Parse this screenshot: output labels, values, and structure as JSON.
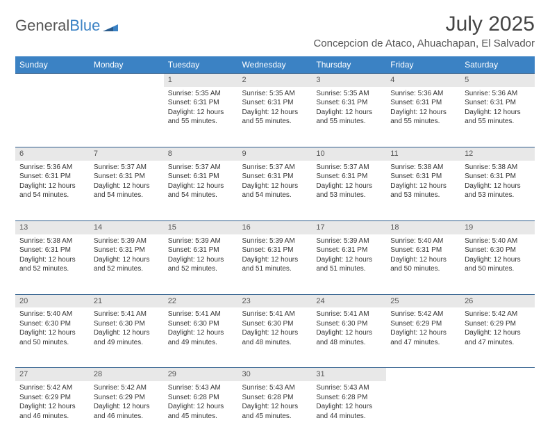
{
  "brand": {
    "part1": "General",
    "part2": "Blue"
  },
  "title": "July 2025",
  "location": "Concepcion de Ataco, Ahuachapan, El Salvador",
  "colors": {
    "header_bg": "#3b82c4",
    "header_text": "#ffffff",
    "daynum_bg": "#e8e8e8",
    "rule": "#2a5a8a",
    "text": "#333333",
    "brand_gray": "#555555",
    "brand_blue": "#3b82c4",
    "page_bg": "#ffffff"
  },
  "font": {
    "family": "Arial",
    "day_header_size": 12,
    "body_size": 10,
    "title_size": 30,
    "location_size": 15
  },
  "day_headers": [
    "Sunday",
    "Monday",
    "Tuesday",
    "Wednesday",
    "Thursday",
    "Friday",
    "Saturday"
  ],
  "weeks": [
    [
      null,
      null,
      {
        "n": "1",
        "sr": "Sunrise: 5:35 AM",
        "ss": "Sunset: 6:31 PM",
        "dl": "Daylight: 12 hours and 55 minutes."
      },
      {
        "n": "2",
        "sr": "Sunrise: 5:35 AM",
        "ss": "Sunset: 6:31 PM",
        "dl": "Daylight: 12 hours and 55 minutes."
      },
      {
        "n": "3",
        "sr": "Sunrise: 5:35 AM",
        "ss": "Sunset: 6:31 PM",
        "dl": "Daylight: 12 hours and 55 minutes."
      },
      {
        "n": "4",
        "sr": "Sunrise: 5:36 AM",
        "ss": "Sunset: 6:31 PM",
        "dl": "Daylight: 12 hours and 55 minutes."
      },
      {
        "n": "5",
        "sr": "Sunrise: 5:36 AM",
        "ss": "Sunset: 6:31 PM",
        "dl": "Daylight: 12 hours and 55 minutes."
      }
    ],
    [
      {
        "n": "6",
        "sr": "Sunrise: 5:36 AM",
        "ss": "Sunset: 6:31 PM",
        "dl": "Daylight: 12 hours and 54 minutes."
      },
      {
        "n": "7",
        "sr": "Sunrise: 5:37 AM",
        "ss": "Sunset: 6:31 PM",
        "dl": "Daylight: 12 hours and 54 minutes."
      },
      {
        "n": "8",
        "sr": "Sunrise: 5:37 AM",
        "ss": "Sunset: 6:31 PM",
        "dl": "Daylight: 12 hours and 54 minutes."
      },
      {
        "n": "9",
        "sr": "Sunrise: 5:37 AM",
        "ss": "Sunset: 6:31 PM",
        "dl": "Daylight: 12 hours and 54 minutes."
      },
      {
        "n": "10",
        "sr": "Sunrise: 5:37 AM",
        "ss": "Sunset: 6:31 PM",
        "dl": "Daylight: 12 hours and 53 minutes."
      },
      {
        "n": "11",
        "sr": "Sunrise: 5:38 AM",
        "ss": "Sunset: 6:31 PM",
        "dl": "Daylight: 12 hours and 53 minutes."
      },
      {
        "n": "12",
        "sr": "Sunrise: 5:38 AM",
        "ss": "Sunset: 6:31 PM",
        "dl": "Daylight: 12 hours and 53 minutes."
      }
    ],
    [
      {
        "n": "13",
        "sr": "Sunrise: 5:38 AM",
        "ss": "Sunset: 6:31 PM",
        "dl": "Daylight: 12 hours and 52 minutes."
      },
      {
        "n": "14",
        "sr": "Sunrise: 5:39 AM",
        "ss": "Sunset: 6:31 PM",
        "dl": "Daylight: 12 hours and 52 minutes."
      },
      {
        "n": "15",
        "sr": "Sunrise: 5:39 AM",
        "ss": "Sunset: 6:31 PM",
        "dl": "Daylight: 12 hours and 52 minutes."
      },
      {
        "n": "16",
        "sr": "Sunrise: 5:39 AM",
        "ss": "Sunset: 6:31 PM",
        "dl": "Daylight: 12 hours and 51 minutes."
      },
      {
        "n": "17",
        "sr": "Sunrise: 5:39 AM",
        "ss": "Sunset: 6:31 PM",
        "dl": "Daylight: 12 hours and 51 minutes."
      },
      {
        "n": "18",
        "sr": "Sunrise: 5:40 AM",
        "ss": "Sunset: 6:31 PM",
        "dl": "Daylight: 12 hours and 50 minutes."
      },
      {
        "n": "19",
        "sr": "Sunrise: 5:40 AM",
        "ss": "Sunset: 6:30 PM",
        "dl": "Daylight: 12 hours and 50 minutes."
      }
    ],
    [
      {
        "n": "20",
        "sr": "Sunrise: 5:40 AM",
        "ss": "Sunset: 6:30 PM",
        "dl": "Daylight: 12 hours and 50 minutes."
      },
      {
        "n": "21",
        "sr": "Sunrise: 5:41 AM",
        "ss": "Sunset: 6:30 PM",
        "dl": "Daylight: 12 hours and 49 minutes."
      },
      {
        "n": "22",
        "sr": "Sunrise: 5:41 AM",
        "ss": "Sunset: 6:30 PM",
        "dl": "Daylight: 12 hours and 49 minutes."
      },
      {
        "n": "23",
        "sr": "Sunrise: 5:41 AM",
        "ss": "Sunset: 6:30 PM",
        "dl": "Daylight: 12 hours and 48 minutes."
      },
      {
        "n": "24",
        "sr": "Sunrise: 5:41 AM",
        "ss": "Sunset: 6:30 PM",
        "dl": "Daylight: 12 hours and 48 minutes."
      },
      {
        "n": "25",
        "sr": "Sunrise: 5:42 AM",
        "ss": "Sunset: 6:29 PM",
        "dl": "Daylight: 12 hours and 47 minutes."
      },
      {
        "n": "26",
        "sr": "Sunrise: 5:42 AM",
        "ss": "Sunset: 6:29 PM",
        "dl": "Daylight: 12 hours and 47 minutes."
      }
    ],
    [
      {
        "n": "27",
        "sr": "Sunrise: 5:42 AM",
        "ss": "Sunset: 6:29 PM",
        "dl": "Daylight: 12 hours and 46 minutes."
      },
      {
        "n": "28",
        "sr": "Sunrise: 5:42 AM",
        "ss": "Sunset: 6:29 PM",
        "dl": "Daylight: 12 hours and 46 minutes."
      },
      {
        "n": "29",
        "sr": "Sunrise: 5:43 AM",
        "ss": "Sunset: 6:28 PM",
        "dl": "Daylight: 12 hours and 45 minutes."
      },
      {
        "n": "30",
        "sr": "Sunrise: 5:43 AM",
        "ss": "Sunset: 6:28 PM",
        "dl": "Daylight: 12 hours and 45 minutes."
      },
      {
        "n": "31",
        "sr": "Sunrise: 5:43 AM",
        "ss": "Sunset: 6:28 PM",
        "dl": "Daylight: 12 hours and 44 minutes."
      },
      null,
      null
    ]
  ]
}
